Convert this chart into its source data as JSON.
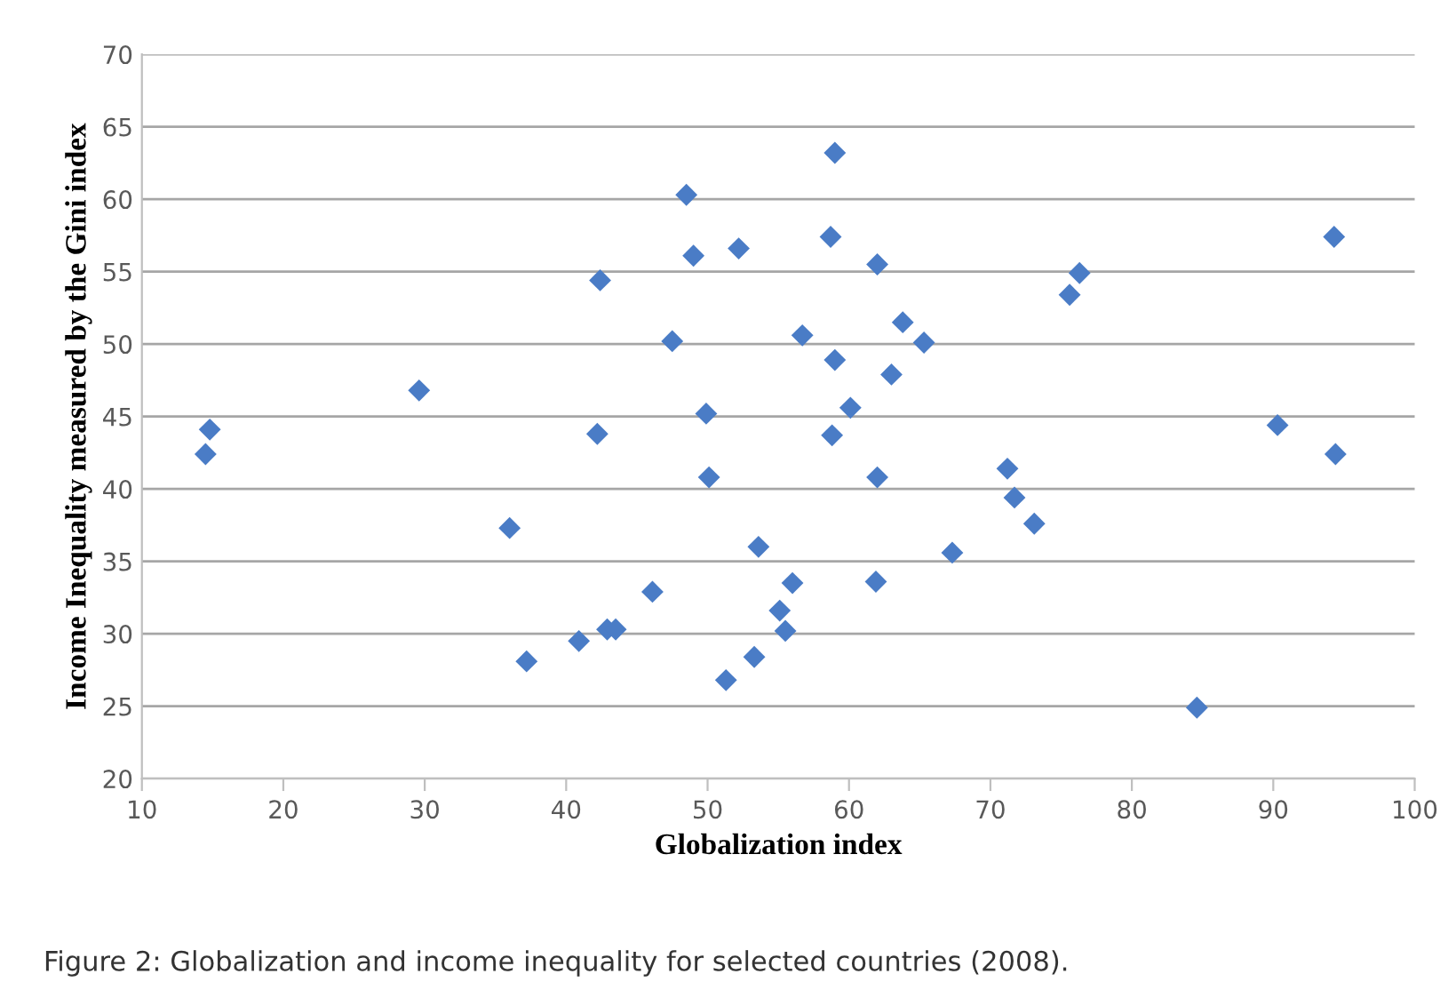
{
  "chart_data": {
    "type": "scatter",
    "xlabel": "Globalization index",
    "ylabel": "Income Inequality measured by the Gini index",
    "annotations": [
      "Figure 2: Globalization and income inequality for selected countries (2008)."
    ],
    "xlim": [
      10,
      100
    ],
    "xticks": [
      10,
      20,
      30,
      40,
      50,
      60,
      70,
      80,
      90,
      100
    ],
    "ylim": [
      20,
      70
    ],
    "yticks": [
      20,
      25,
      30,
      35,
      40,
      45,
      50,
      55,
      60,
      65,
      70
    ],
    "grid": "y",
    "marker": "diamond",
    "series": [
      {
        "color": "#4a7cc6",
        "x": [
          14.5,
          14.8,
          29.6,
          36,
          37.2,
          40.9,
          42.9,
          43.5,
          42.2,
          42.4,
          46.1,
          47.5,
          48.5,
          49,
          49.9,
          50.1,
          51.3,
          52.2,
          53.3,
          53.6,
          55.1,
          55.5,
          56,
          56.7,
          58.7,
          58.8,
          59,
          59,
          60.1,
          61.9,
          62,
          62,
          63,
          63.8,
          65.3,
          67.3,
          71.2,
          71.7,
          73.1,
          75.6,
          76.3,
          84.6,
          90.3,
          94.3,
          94.4
        ],
        "values": [
          42.4,
          44.1,
          46.8,
          37.3,
          28.1,
          29.5,
          30.3,
          30.3,
          43.8,
          54.4,
          32.9,
          50.2,
          60.3,
          56.1,
          45.2,
          40.8,
          26.8,
          56.6,
          28.4,
          36,
          31.6,
          30.2,
          33.5,
          50.6,
          57.4,
          43.7,
          48.9,
          63.2,
          45.6,
          33.6,
          40.8,
          55.5,
          47.9,
          51.5,
          50.1,
          35.6,
          41.4,
          39.4,
          37.6,
          53.4,
          54.9,
          24.9,
          44.4,
          57.4,
          42.4
        ]
      }
    ]
  }
}
